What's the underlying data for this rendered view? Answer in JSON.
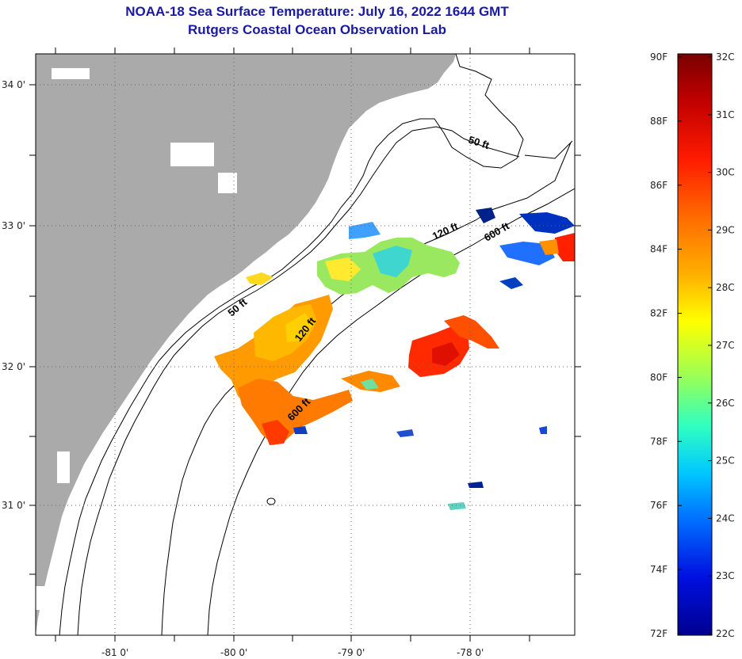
{
  "title": "NOAA-18 Sea Surface Temperature:  July 16, 2022 1644 GMT",
  "subtitle": "Rutgers Coastal Ocean Observation Lab",
  "map": {
    "lat_labels": [
      "34 0'",
      "33 0'",
      "32 0'",
      "31 0'"
    ],
    "lon_labels": [
      "-81 0'",
      "-80 0'",
      "-79 0'",
      "-78 0'"
    ],
    "contours": {
      "c50a": "50 ft",
      "c50b": "50 ft",
      "c120a": "120 ft",
      "c120b": "120 ft",
      "c600a": "600 ft",
      "c600b": "600 ft"
    },
    "colors": {
      "land": "#aaaaaa",
      "ocean": "#ffffff",
      "cloud": "#ffffff"
    }
  },
  "colorbar": {
    "fahrenheit": [
      "90F",
      "88F",
      "86F",
      "84F",
      "82F",
      "80F",
      "78F",
      "76F",
      "74F",
      "72F"
    ],
    "celsius": [
      "32C",
      "31C",
      "30C",
      "29C",
      "28C",
      "27C",
      "26C",
      "25C",
      "24C",
      "23C",
      "22C"
    ],
    "colormap_stops": [
      "#7a0000",
      "#c00000",
      "#ff1a00",
      "#ff6a00",
      "#ffb000",
      "#ffff00",
      "#a0ff50",
      "#30ffc0",
      "#00c8ff",
      "#0070ff",
      "#0010e0",
      "#000090"
    ]
  }
}
